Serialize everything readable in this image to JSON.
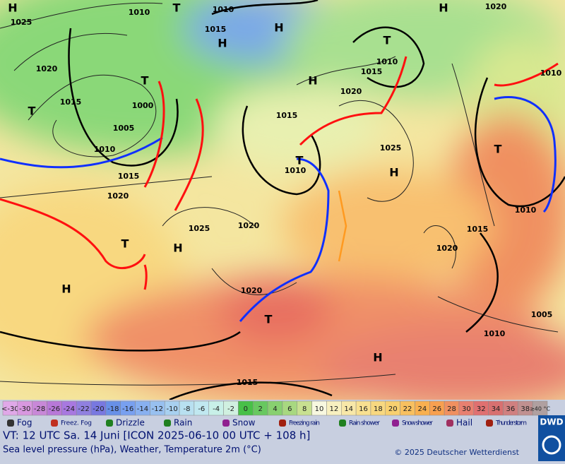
{
  "map": {
    "labels": [
      "H",
      "T",
      "1010",
      "1010",
      "1015",
      "H",
      "H",
      "T",
      "H",
      "1020",
      "1025",
      "1020",
      "1015",
      "T",
      "1000",
      "1005",
      "1010",
      "1015",
      "1020",
      "T",
      "H",
      "1020",
      "1015",
      "1010",
      "1010",
      "1015",
      "1025",
      "H",
      "T",
      "1010",
      "T",
      "1010",
      "1015",
      "1020",
      "1020",
      "1025",
      "H",
      "T",
      "H",
      "1020",
      "T",
      "H",
      "1015",
      "1005",
      "1010"
    ]
  },
  "legend": {
    "scale": [
      {
        "label": "<-30",
        "color": "#e0a8e8"
      },
      {
        "label": "-30",
        "color": "#d898e0"
      },
      {
        "label": "-28",
        "color": "#c888d8"
      },
      {
        "label": "-26",
        "color": "#b878d8"
      },
      {
        "label": "-24",
        "color": "#a878e0"
      },
      {
        "label": "-22",
        "color": "#9080e0"
      },
      {
        "label": "-20",
        "color": "#7878e0"
      },
      {
        "label": "-18",
        "color": "#6890e8"
      },
      {
        "label": "-16",
        "color": "#78a0f0"
      },
      {
        "label": "-14",
        "color": "#88b0f0"
      },
      {
        "label": "-12",
        "color": "#98c0f0"
      },
      {
        "label": "-10",
        "color": "#a8d0f0"
      },
      {
        "label": "-8",
        "color": "#b8e0f0"
      },
      {
        "label": "-6",
        "color": "#c0e8f0"
      },
      {
        "label": "-4",
        "color": "#c8f0e8"
      },
      {
        "label": "-2",
        "color": "#d0f0e0"
      },
      {
        "label": "0",
        "color": "#48c048"
      },
      {
        "label": "2",
        "color": "#68c860"
      },
      {
        "label": "4",
        "color": "#88d070"
      },
      {
        "label": "6",
        "color": "#a8d880"
      },
      {
        "label": "8",
        "color": "#c8e090"
      },
      {
        "label": "10",
        "color": "#f8f8e0"
      },
      {
        "label": "12",
        "color": "#f8f0c0"
      },
      {
        "label": "14",
        "color": "#f8e8a8"
      },
      {
        "label": "16",
        "color": "#f8e090"
      },
      {
        "label": "18",
        "color": "#f8d880"
      },
      {
        "label": "20",
        "color": "#f8d070"
      },
      {
        "label": "22",
        "color": "#f8c060"
      },
      {
        "label": "24",
        "color": "#f8b050"
      },
      {
        "label": "26",
        "color": "#f8a050"
      },
      {
        "label": "28",
        "color": "#f09060"
      },
      {
        "label": "30",
        "color": "#e88070"
      },
      {
        "label": "32",
        "color": "#e07070"
      },
      {
        "label": "34",
        "color": "#d87070"
      },
      {
        "label": "36",
        "color": "#d08080"
      },
      {
        "label": "38",
        "color": "#c09090"
      },
      {
        "label": "≥40 °C",
        "color": "#b0a0a0"
      }
    ],
    "weather": [
      "Fog",
      "Freez. Fog",
      "Drizzle",
      "Rain",
      "Snow",
      "Freezing rain",
      "Rain shower",
      "Snow shower",
      "Hail",
      "Thunder storm"
    ]
  },
  "footer": {
    "valid": "VT: 12 UTC Sa.   14 Juni [ICON 2025-06-10  00 UTC + 108 h]",
    "subtitle": "Sea level pressure (hPa), Weather, Temperature 2m (°C)",
    "copyright": "© 2025 Deutscher Wetterdienst",
    "logo": "DWD"
  }
}
